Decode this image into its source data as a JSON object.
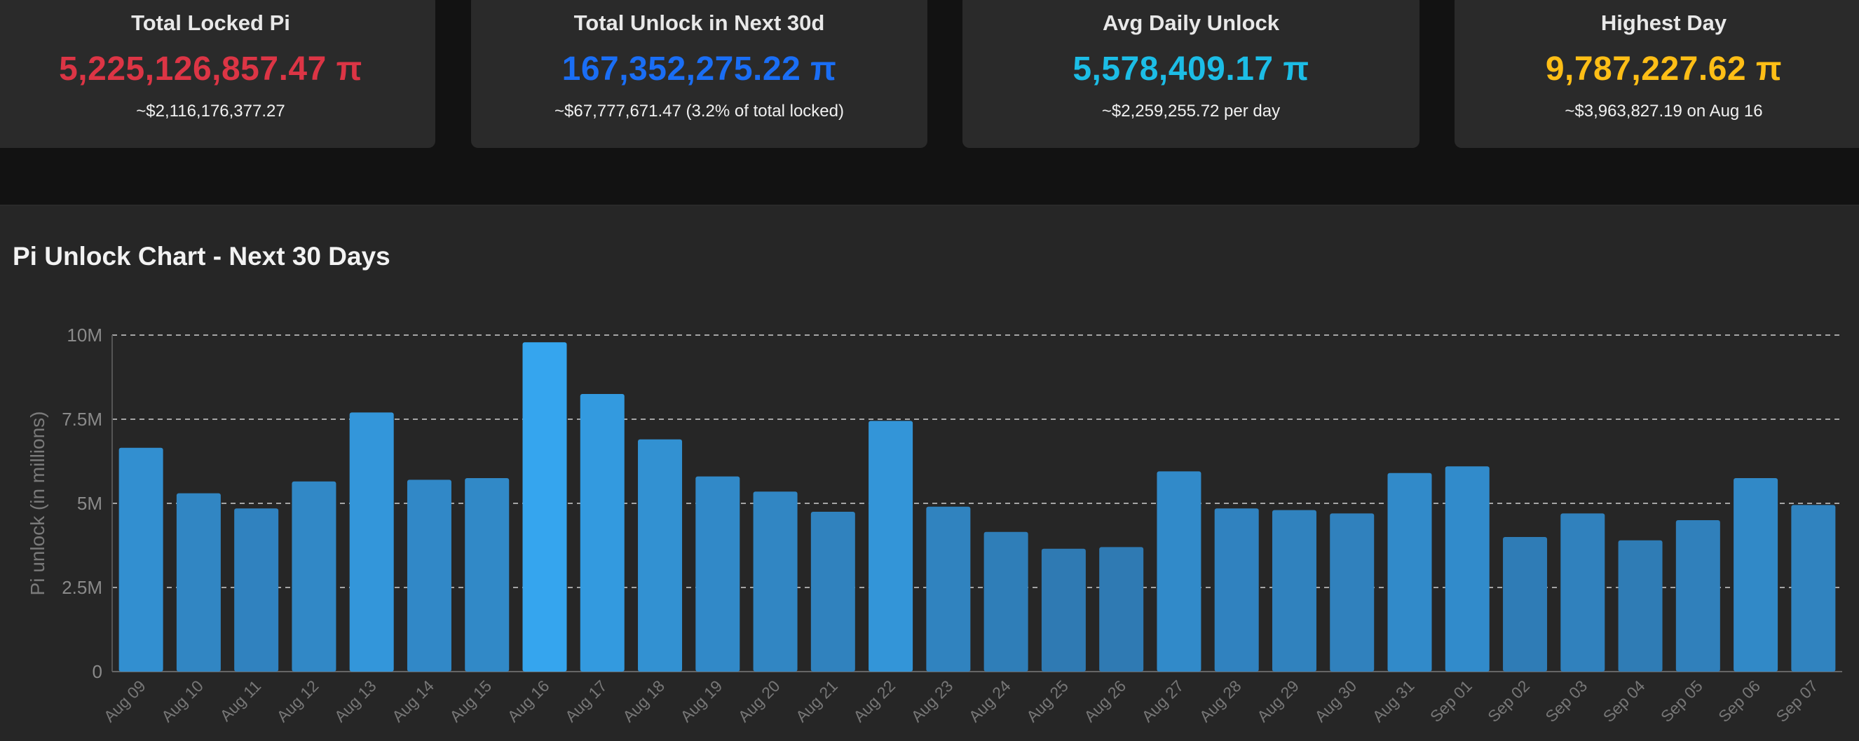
{
  "cards": [
    {
      "label": "Total Locked Pi",
      "value": "5,225,126,857.47 π",
      "sub": "~$2,116,176,377.27",
      "color": "#dc3545"
    },
    {
      "label": "Total Unlock in Next 30d",
      "value": "167,352,275.22 π",
      "sub": "~$67,777,671.47 (3.2% of total locked)",
      "color": "#1a6ef5"
    },
    {
      "label": "Avg Daily Unlock",
      "value": "5,578,409.17 π",
      "sub": "~$2,259,255.72 per day",
      "color": "#1cbde6"
    },
    {
      "label": "Highest Day",
      "value": "9,787,227.62 π",
      "sub": "~$3,963,827.19 on Aug 16",
      "color": "#ffbe16"
    }
  ],
  "chart_panel": {
    "title": "Pi Unlock Chart - Next 30 Days"
  },
  "chart_data": {
    "type": "bar",
    "title": "Pi Unlock Chart - Next 30 Days",
    "ylabel": "Pi unlock (in millions)",
    "xlabel": "",
    "ylim": [
      0,
      10000000
    ],
    "yticks": [
      0,
      2500000,
      5000000,
      7500000,
      10000000
    ],
    "ytick_labels": [
      "0",
      "2.5M",
      "5M",
      "7.5M",
      "10M"
    ],
    "grid": "horizontal dashed",
    "bar_color_low": "#2f7ab3",
    "bar_color_high": "#35a5ee",
    "categories": [
      "Aug 09",
      "Aug 10",
      "Aug 11",
      "Aug 12",
      "Aug 13",
      "Aug 14",
      "Aug 15",
      "Aug 16",
      "Aug 17",
      "Aug 18",
      "Aug 19",
      "Aug 20",
      "Aug 21",
      "Aug 22",
      "Aug 23",
      "Aug 24",
      "Aug 25",
      "Aug 26",
      "Aug 27",
      "Aug 28",
      "Aug 29",
      "Aug 30",
      "Aug 31",
      "Sep 01",
      "Sep 02",
      "Sep 03",
      "Sep 04",
      "Sep 05",
      "Sep 06",
      "Sep 07"
    ],
    "values": [
      6650000,
      5300000,
      4850000,
      5650000,
      7700000,
      5700000,
      5750000,
      9787227.62,
      8250000,
      6900000,
      5800000,
      5350000,
      4750000,
      7450000,
      4900000,
      4150000,
      3650000,
      3700000,
      5950000,
      4850000,
      4800000,
      4700000,
      5900000,
      6100000,
      4000000,
      4700000,
      3900000,
      4500000,
      5750000,
      4950000
    ]
  }
}
